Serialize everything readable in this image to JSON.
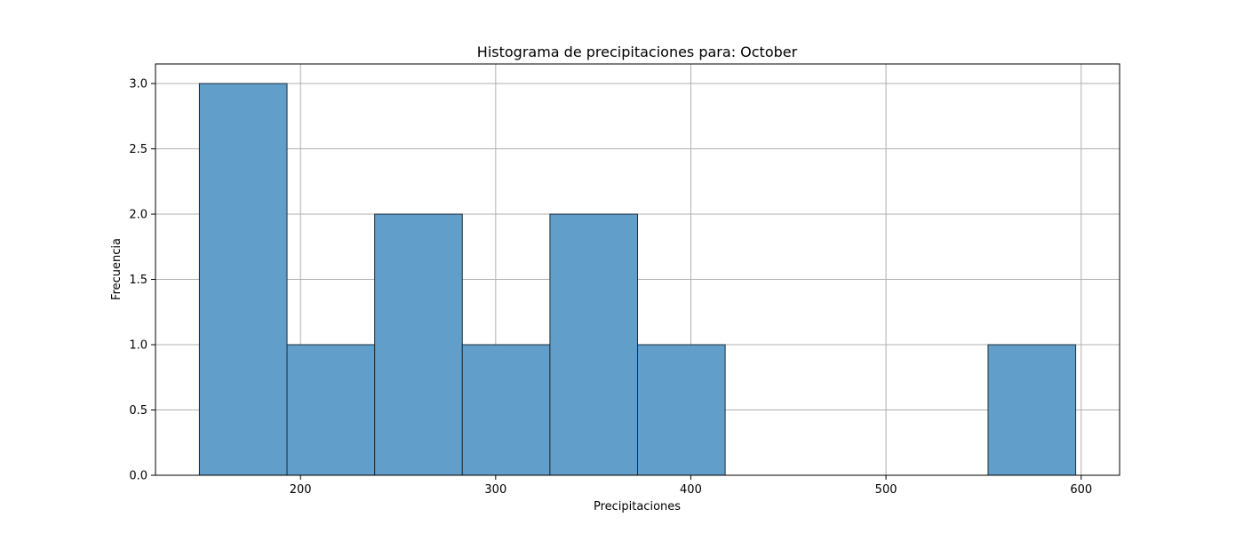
{
  "chart_data": {
    "type": "bar",
    "title": "Histograma de precipitaciones para: October",
    "xlabel": "Precipitaciones",
    "ylabel": "Frecuencia",
    "bins": [
      {
        "start": 148.2,
        "end": 193.1,
        "count": 3
      },
      {
        "start": 193.1,
        "end": 238.0,
        "count": 1
      },
      {
        "start": 238.0,
        "end": 282.9,
        "count": 2
      },
      {
        "start": 282.9,
        "end": 327.8,
        "count": 1
      },
      {
        "start": 327.8,
        "end": 372.7,
        "count": 2
      },
      {
        "start": 372.7,
        "end": 417.6,
        "count": 1
      },
      {
        "start": 417.6,
        "end": 462.5,
        "count": 0
      },
      {
        "start": 462.5,
        "end": 507.4,
        "count": 0
      },
      {
        "start": 507.4,
        "end": 552.3,
        "count": 0
      },
      {
        "start": 552.3,
        "end": 597.2,
        "count": 1
      }
    ],
    "xlim": [
      125.7,
      619.7
    ],
    "ylim": [
      0,
      3.15
    ],
    "xticks": [
      {
        "value": 200,
        "label": "200"
      },
      {
        "value": 300,
        "label": "300"
      },
      {
        "value": 400,
        "label": "400"
      },
      {
        "value": 500,
        "label": "500"
      },
      {
        "value": 600,
        "label": "600"
      }
    ],
    "yticks": [
      {
        "value": 0.0,
        "label": "0.0"
      },
      {
        "value": 0.5,
        "label": "0.5"
      },
      {
        "value": 1.0,
        "label": "1.0"
      },
      {
        "value": 1.5,
        "label": "1.5"
      },
      {
        "value": 2.0,
        "label": "2.0"
      },
      {
        "value": 2.5,
        "label": "2.5"
      },
      {
        "value": 3.0,
        "label": "3.0"
      }
    ],
    "grid": true,
    "bar_color": "#619fca",
    "edge_color": "#1f2d3a",
    "grid_color": "#b0b0b0"
  }
}
